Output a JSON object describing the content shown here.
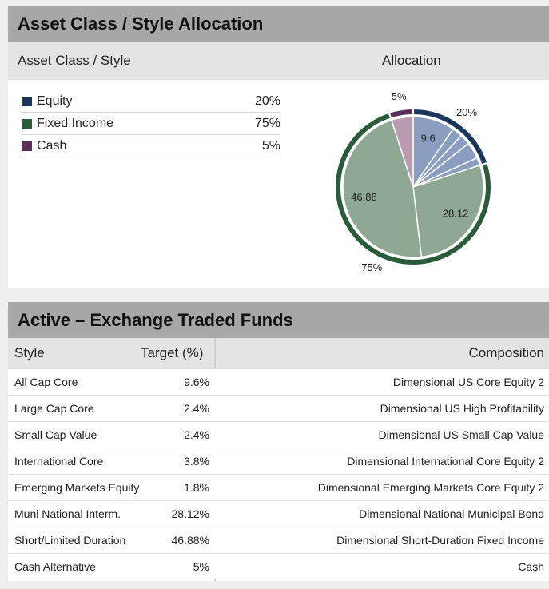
{
  "allocation": {
    "title": "Asset Class / Style Allocation",
    "header": [
      "Asset Class / Style",
      "Allocation"
    ],
    "legend": [
      {
        "name": "Equity",
        "color": "#1b365d",
        "value": "20%"
      },
      {
        "name": "Fixed Income",
        "color": "#2b5c3a",
        "value": "75%"
      },
      {
        "name": "Cash",
        "color": "#5b2d5c",
        "value": "5%"
      }
    ]
  },
  "chart_data": {
    "type": "pie",
    "outer": {
      "values": [
        20,
        75,
        5
      ],
      "value_labels": [
        "20%",
        "75%",
        "5%"
      ],
      "colors": [
        "#1b365d",
        "#2b5c3a",
        "#5b2d5c"
      ]
    },
    "inner": {
      "values": [
        9.6,
        2.4,
        2.4,
        3.8,
        1.8,
        28.12,
        46.88,
        5
      ],
      "colors": [
        "#8a9fc0",
        "#8a9fc0",
        "#8a9fc0",
        "#8a9fc0",
        "#8a9fc0",
        "#8fa893",
        "#8fa893",
        "#b99cb0"
      ]
    }
  },
  "funds": {
    "title": "Active – Exchange Traded Funds",
    "header": [
      "Style",
      "Target (%)",
      "Composition"
    ],
    "rows": [
      [
        "All Cap Core",
        "9.6%",
        "Dimensional US Core Equity 2"
      ],
      [
        "Large Cap Core",
        "2.4%",
        "Dimensional US High Profitability"
      ],
      [
        "Small Cap Value",
        "2.4%",
        "Dimensional US Small Cap Value"
      ],
      [
        "International Core",
        "3.8%",
        "Dimensional International Core Equity 2"
      ],
      [
        "Emerging Markets Equity",
        "1.8%",
        "Dimensional Emerging Markets Core Equity 2"
      ],
      [
        "Muni National Interm.",
        "28.12%",
        "Dimensional National Municipal Bond"
      ],
      [
        "Short/Limited Duration",
        "46.88%",
        "Dimensional Short-Duration Fixed Income"
      ],
      [
        "Cash Alternative",
        "5%",
        "Cash"
      ]
    ]
  }
}
